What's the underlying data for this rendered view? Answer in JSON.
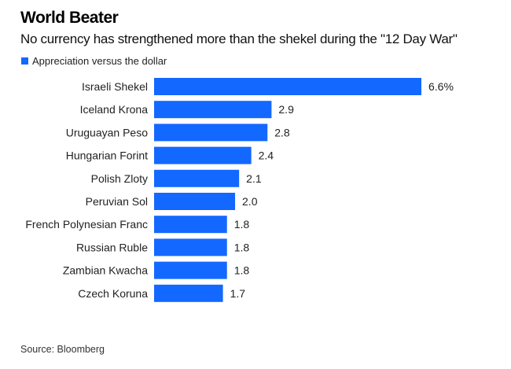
{
  "chart_data": {
    "type": "bar",
    "orientation": "horizontal",
    "title": "World Beater",
    "subtitle": "No currency has strengthened more than the shekel during the \"12 Day War\"",
    "legend": [
      {
        "label": "Appreciation versus the dollar",
        "color": "#1368ff"
      }
    ],
    "legend_position": "top-left",
    "categories": [
      "Israeli Shekel",
      "Iceland Krona",
      "Uruguayan Peso",
      "Hungarian Forint",
      "Polish Zloty",
      "Peruvian Sol",
      "French Polynesian Franc",
      "Russian Ruble",
      "Zambian Kwacha",
      "Czech Koruna"
    ],
    "values": [
      6.6,
      2.9,
      2.8,
      2.4,
      2.1,
      2.0,
      1.8,
      1.8,
      1.8,
      1.7
    ],
    "data_labels": [
      "6.6%",
      "2.9",
      "2.8",
      "2.4",
      "2.1",
      "2.0",
      "1.8",
      "1.8",
      "1.8",
      "1.7"
    ],
    "unit": "%",
    "xlabel": "",
    "ylabel": "",
    "xlim": [
      0,
      6.6
    ],
    "grid": false,
    "source": "Source: Bloomberg"
  }
}
